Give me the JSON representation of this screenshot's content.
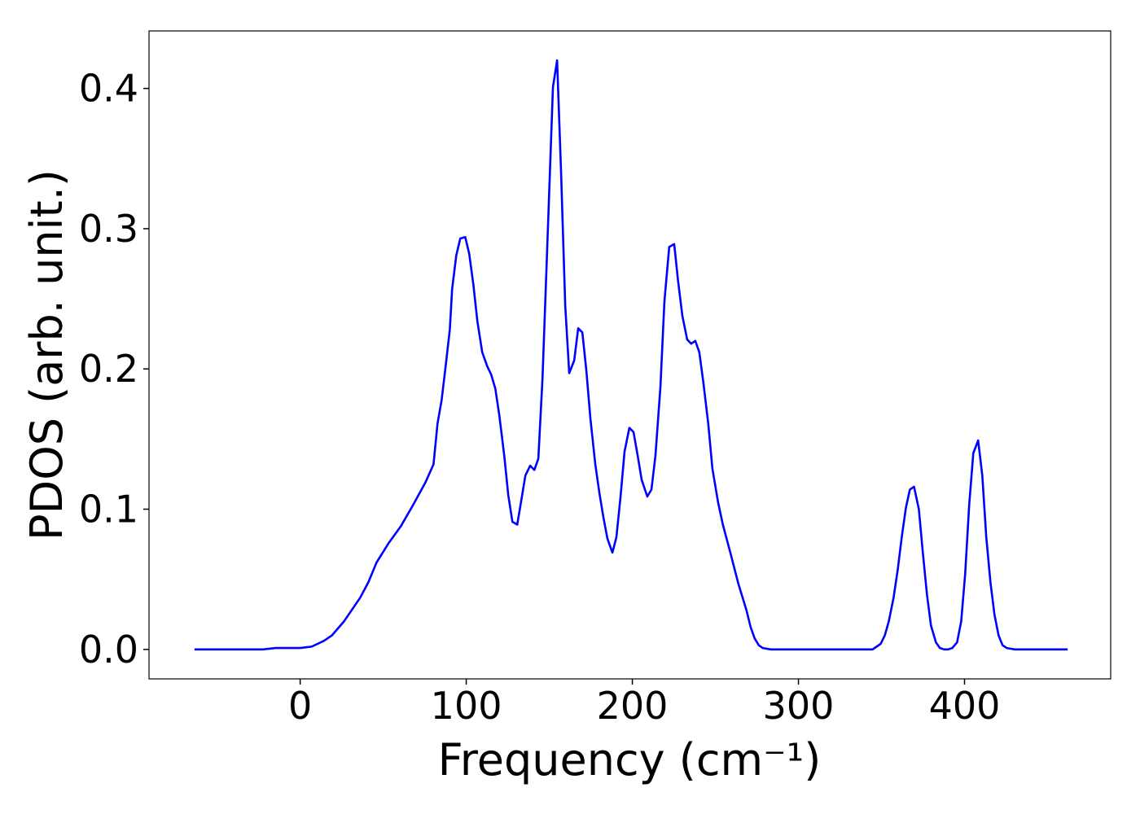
{
  "chart_data": {
    "type": "line",
    "xlabel": "Frequency (cm⁻¹)",
    "ylabel": "PDOS (arb. unit.)",
    "x": [
      -63.6,
      -22.5,
      -14.7,
      0,
      6.9,
      14.2,
      19.1,
      26.4,
      36.2,
      41.1,
      46.0,
      53.4,
      60.7,
      68.0,
      75.4,
      80.3,
      82.7,
      85.2,
      87.6,
      90.1,
      91.5,
      94.0,
      96.4,
      99.4,
      101.8,
      104.3,
      106.7,
      109.6,
      112.6,
      115.0,
      117.5,
      119.9,
      122.9,
      125.3,
      127.8,
      130.7,
      133.1,
      135.6,
      138.5,
      141.0,
      143.4,
      145.9,
      148.8,
      152.2,
      154.7,
      157.1,
      159.6,
      162.0,
      165.0,
      167.4,
      169.9,
      172.3,
      174.8,
      177.7,
      180.1,
      182.6,
      185.0,
      188.0,
      190.4,
      192.9,
      195.3,
      198.2,
      200.7,
      203.1,
      205.6,
      209.0,
      211.5,
      213.9,
      216.9,
      219.3,
      222.2,
      225.2,
      227.6,
      230.1,
      233.0,
      235.4,
      237.9,
      240.3,
      242.8,
      245.7,
      248.2,
      251.6,
      254.5,
      259.0,
      263.8,
      268.7,
      271.2,
      273.6,
      276.1,
      278.5,
      283.4,
      344.6,
      347.1,
      349.5,
      352.0,
      354.4,
      357.3,
      359.8,
      362.2,
      364.7,
      367.1,
      369.6,
      372.5,
      374.9,
      377.4,
      379.8,
      382.8,
      385.2,
      387.7,
      390.1,
      392.6,
      395.5,
      398.0,
      400.4,
      402.8,
      405.3,
      408.2,
      410.7,
      413.1,
      415.6,
      418.0,
      420.5,
      422.9,
      425.4,
      430.3,
      462.1
    ],
    "series": [
      {
        "name": "PDOS",
        "color": "#0000ff",
        "values": [
          0,
          0,
          0.001,
          0.001,
          0.002,
          0.006,
          0.01,
          0.02,
          0.037,
          0.048,
          0.062,
          0.076,
          0.088,
          0.103,
          0.119,
          0.132,
          0.161,
          0.178,
          0.202,
          0.228,
          0.257,
          0.281,
          0.293,
          0.294,
          0.282,
          0.26,
          0.234,
          0.212,
          0.202,
          0.196,
          0.186,
          0.167,
          0.138,
          0.11,
          0.091,
          0.089,
          0.106,
          0.124,
          0.131,
          0.128,
          0.136,
          0.193,
          0.288,
          0.401,
          0.42,
          0.34,
          0.245,
          0.197,
          0.206,
          0.229,
          0.226,
          0.199,
          0.164,
          0.132,
          0.112,
          0.094,
          0.079,
          0.069,
          0.08,
          0.109,
          0.141,
          0.158,
          0.155,
          0.139,
          0.121,
          0.109,
          0.114,
          0.138,
          0.187,
          0.248,
          0.287,
          0.289,
          0.262,
          0.238,
          0.221,
          0.218,
          0.22,
          0.212,
          0.19,
          0.161,
          0.129,
          0.105,
          0.089,
          0.069,
          0.047,
          0.028,
          0.016,
          0.008,
          0.003,
          0.001,
          0,
          0,
          0.002,
          0.004,
          0.01,
          0.02,
          0.037,
          0.057,
          0.08,
          0.101,
          0.114,
          0.116,
          0.1,
          0.069,
          0.039,
          0.017,
          0.005,
          0.001,
          0,
          0,
          0.001,
          0.005,
          0.02,
          0.054,
          0.103,
          0.14,
          0.149,
          0.124,
          0.08,
          0.048,
          0.025,
          0.01,
          0.003,
          0.001,
          0,
          0
        ]
      }
    ],
    "xlim": [
      -91,
      488
    ],
    "ylim": [
      -0.021,
      0.441
    ],
    "xticks": [
      0,
      100,
      200,
      300,
      400
    ],
    "yticks": [
      {
        "value": 0,
        "label": "0.0"
      },
      {
        "value": 0.1,
        "label": "0.1"
      },
      {
        "value": 0.2,
        "label": "0.2"
      },
      {
        "value": 0.3,
        "label": "0.3"
      },
      {
        "value": 0.4,
        "label": "0.4"
      }
    ],
    "grid": false
  }
}
